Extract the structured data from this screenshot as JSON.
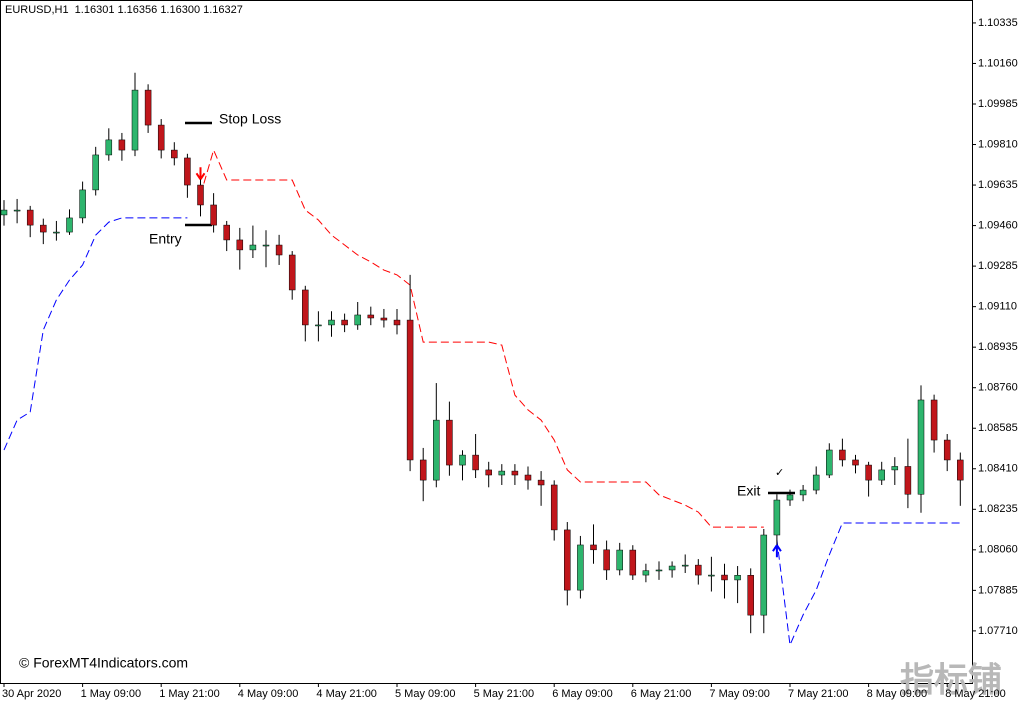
{
  "chart_data": {
    "type": "candlestick",
    "title": "EURUSD,H1  1.16301 1.16356 1.16300 1.16327",
    "up_color": "#2db56d",
    "down_color": "#c0161b",
    "open": [
      1.09506,
      1.09527,
      1.09527,
      1.09462,
      1.09432,
      1.09432,
      1.09493,
      1.09614,
      1.09765,
      1.0983,
      1.09786,
      1.10045,
      1.09894,
      1.09786,
      1.09752,
      1.09635,
      1.09549,
      1.09462,
      1.09398,
      1.09355,
      1.09376,
      1.09376,
      1.09333,
      1.09182,
      1.09031,
      1.09031,
      1.09052,
      1.09031,
      1.09074,
      1.09061,
      1.09052,
      1.09052,
      1.08448,
      1.08361,
      1.0862,
      1.08426,
      1.08469,
      1.08405,
      1.08383,
      1.084,
      1.08383,
      1.08361,
      1.0834,
      1.08146,
      1.07886,
      1.08081,
      1.0806,
      1.07973,
      1.08059,
      1.07951,
      1.0797,
      1.07973,
      1.0799,
      1.07994,
      1.07951,
      1.07951,
      1.0793,
      1.0795,
      1.07778,
      1.08124,
      1.08275,
      1.08297,
      1.08318,
      1.08383,
      1.08491,
      1.08448,
      1.08426,
      1.08361,
      1.08405,
      1.0842,
      1.083,
      1.08707,
      1.08534,
      1.08448
    ],
    "high": [
      1.0957,
      1.09575,
      1.09545,
      1.0949,
      1.0948,
      1.0953,
      1.0965,
      1.098,
      1.0988,
      1.0986,
      1.1012,
      1.1007,
      1.0992,
      1.0982,
      1.0977,
      1.0966,
      1.096,
      1.0948,
      1.0945,
      1.0946,
      1.0944,
      1.0942,
      1.0935,
      1.092,
      1.0909,
      1.0909,
      1.0908,
      1.0913,
      1.0911,
      1.091,
      1.091,
      1.09247,
      1.085,
      1.0878,
      1.087,
      1.0849,
      1.0856,
      1.0844,
      1.0843,
      1.0843,
      1.0842,
      1.084,
      1.0836,
      1.0818,
      1.0812,
      1.0817,
      1.081,
      1.0809,
      1.0808,
      1.08,
      1.0801,
      1.0801,
      1.0804,
      1.0802,
      1.0803,
      1.08,
      1.0799,
      1.0798,
      1.0815,
      1.083,
      1.0832,
      1.0834,
      1.0842,
      1.0852,
      1.0854,
      1.0847,
      1.0844,
      1.0844,
      1.0846,
      1.0854,
      1.0877,
      1.0873,
      1.0856,
      1.0848
    ],
    "low": [
      1.0946,
      1.0947,
      1.0941,
      1.0938,
      1.09395,
      1.0942,
      1.0947,
      1.0959,
      1.0974,
      1.0974,
      1.0976,
      1.0986,
      1.0975,
      1.0972,
      1.0958,
      1.095,
      1.0943,
      1.0935,
      1.0927,
      1.0932,
      1.0928,
      1.0929,
      1.0914,
      1.0896,
      1.0896,
      1.0898,
      1.09,
      1.0901,
      1.0903,
      1.0902,
      1.0899,
      1.084,
      1.0827,
      1.0833,
      1.0838,
      1.0836,
      1.0837,
      1.0833,
      1.0834,
      1.0834,
      1.0832,
      1.0825,
      1.081,
      1.0782,
      1.0785,
      1.08,
      1.0793,
      1.0795,
      1.0793,
      1.0792,
      1.0793,
      1.0794,
      1.0796,
      1.0791,
      1.0788,
      1.0785,
      1.0783,
      1.077,
      1.077,
      1.0808,
      1.0825,
      1.0827,
      1.083,
      1.0837,
      1.0842,
      1.0839,
      1.0829,
      1.0834,
      1.0834,
      1.0824,
      1.0822,
      1.0848,
      1.084,
      1.0825
    ],
    "close": [
      1.09527,
      1.09527,
      1.09462,
      1.09432,
      1.09432,
      1.09493,
      1.09614,
      1.09765,
      1.0983,
      1.09786,
      1.10045,
      1.09894,
      1.09786,
      1.09752,
      1.09635,
      1.09549,
      1.09462,
      1.09398,
      1.09355,
      1.09376,
      1.09376,
      1.09333,
      1.09182,
      1.09031,
      1.09031,
      1.09052,
      1.09031,
      1.09074,
      1.09061,
      1.09052,
      1.09031,
      1.08448,
      1.08361,
      1.0862,
      1.08426,
      1.08469,
      1.08405,
      1.08383,
      1.084,
      1.08383,
      1.08361,
      1.0834,
      1.08146,
      1.07886,
      1.08081,
      1.0806,
      1.07973,
      1.08059,
      1.07951,
      1.0797,
      1.07973,
      1.0799,
      1.07994,
      1.07951,
      1.07951,
      1.0793,
      1.0795,
      1.07778,
      1.08124,
      1.08275,
      1.08297,
      1.08318,
      1.08383,
      1.08491,
      1.08448,
      1.08426,
      1.08361,
      1.08405,
      1.0842,
      1.083,
      1.08707,
      1.08534,
      1.08448,
      1.08361
    ],
    "lines": [
      {
        "color": "#ff0000",
        "values": [
          null,
          null,
          null,
          null,
          null,
          null,
          null,
          null,
          null,
          null,
          null,
          null,
          null,
          null,
          null,
          1.09592,
          1.09786,
          1.09657,
          1.09657,
          1.09657,
          1.09657,
          1.09657,
          1.09657,
          1.09527,
          1.09484,
          1.09419,
          1.09376,
          1.09333,
          1.09303,
          1.09268,
          1.09247,
          1.09203,
          1.08957,
          1.08957,
          1.08957,
          1.08957,
          1.08957,
          1.08957,
          1.08944,
          1.08728,
          1.08664,
          1.0862,
          1.08534,
          1.08405,
          1.08353,
          1.08353,
          1.08353,
          1.08353,
          1.08353,
          1.08353,
          1.08297,
          1.08275,
          1.08253,
          1.08223,
          1.08158,
          1.08158,
          1.08158,
          1.08158,
          1.08158,
          null,
          null,
          null,
          null,
          null,
          null,
          null,
          null,
          null,
          null,
          null,
          null,
          null,
          null,
          null
        ]
      },
      {
        "color": "#0000ff",
        "values": [
          1.08491,
          1.0862,
          1.08655,
          1.09009,
          1.09139,
          1.09225,
          1.0929,
          1.09419,
          1.09475,
          1.09493,
          1.09493,
          1.09493,
          1.09493,
          1.09493,
          1.09493,
          null,
          null,
          null,
          null,
          null,
          null,
          null,
          null,
          null,
          null,
          null,
          null,
          null,
          null,
          null,
          null,
          null,
          null,
          null,
          null,
          null,
          null,
          null,
          null,
          null,
          null,
          null,
          null,
          null,
          null,
          null,
          null,
          null,
          null,
          null,
          null,
          null,
          null,
          null,
          null,
          null,
          null,
          null,
          null,
          1.08103,
          1.07649,
          1.07779,
          1.07886,
          1.08038,
          1.08176,
          1.08176,
          1.08176,
          1.08176,
          1.08176,
          1.08176,
          1.08176,
          1.08176,
          1.08176,
          1.08176
        ]
      }
    ],
    "ylim": [
      1.07485,
      1.10434
    ],
    "yticks": [
      1.10335,
      {
        "value": 1.1016,
        "label": "1.10160"
      },
      1.09985,
      {
        "value": 1.0981,
        "label": "1.09810"
      },
      1.09635,
      {
        "value": 1.0946,
        "label": "1.09460"
      },
      1.09285,
      {
        "value": 1.0911,
        "label": "1.09110"
      },
      1.08935,
      {
        "value": 1.0876,
        "label": "1.08760"
      },
      1.08585,
      {
        "value": 1.0841,
        "label": "1.08410"
      },
      1.08235,
      {
        "value": 1.0806,
        "label": "1.08060"
      },
      1.07885,
      {
        "value": 1.0771,
        "label": "1.07710"
      }
    ],
    "xticks": [
      {
        "value": 0,
        "label": "30 Apr 2020"
      },
      {
        "value": 6,
        "label": "1 May 09:00"
      },
      {
        "value": 12,
        "label": "1 May 21:00"
      },
      {
        "value": 18,
        "label": "4 May 09:00"
      },
      {
        "value": 24,
        "label": "4 May 21:00"
      },
      {
        "value": 30,
        "label": "5 May 09:00"
      },
      {
        "value": 36,
        "label": "5 May 21:00"
      },
      {
        "value": 42,
        "label": "6 May 09:00"
      },
      {
        "value": 48,
        "label": "6 May 21:00"
      },
      {
        "value": 54,
        "label": "7 May 09:00"
      },
      {
        "value": 60,
        "label": "7 May 21:00"
      },
      {
        "value": 66,
        "label": "8 May 09:00"
      },
      {
        "value": 72,
        "label": "8 May 21:00"
      }
    ],
    "annotations": {
      "stop_loss": "Stop Loss",
      "entry": "Entry",
      "exit": "Exit",
      "check": "✓"
    },
    "copyright": "© ForexMT4Indicators.com",
    "watermark": "指标铺"
  }
}
